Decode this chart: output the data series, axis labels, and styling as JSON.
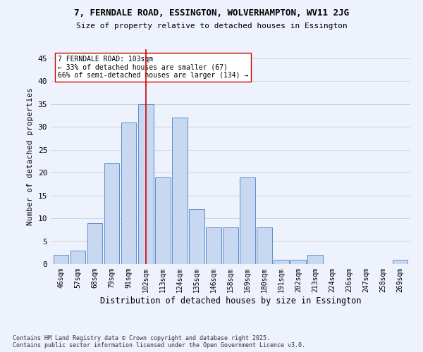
{
  "title1": "7, FERNDALE ROAD, ESSINGTON, WOLVERHAMPTON, WV11 2JG",
  "title2": "Size of property relative to detached houses in Essington",
  "xlabel": "Distribution of detached houses by size in Essington",
  "ylabel": "Number of detached properties",
  "categories": [
    "46sqm",
    "57sqm",
    "68sqm",
    "79sqm",
    "91sqm",
    "102sqm",
    "113sqm",
    "124sqm",
    "135sqm",
    "146sqm",
    "158sqm",
    "169sqm",
    "180sqm",
    "191sqm",
    "202sqm",
    "213sqm",
    "224sqm",
    "236sqm",
    "247sqm",
    "258sqm",
    "269sqm"
  ],
  "values": [
    2,
    3,
    9,
    22,
    31,
    35,
    19,
    32,
    12,
    8,
    8,
    19,
    8,
    1,
    1,
    2,
    0,
    0,
    0,
    0,
    1
  ],
  "bar_color": "#c8d8f0",
  "bar_edge_color": "#5a8fd0",
  "grid_color": "#cccccc",
  "background_color": "#eef2fc",
  "vline_x_index": 5,
  "vline_color": "#cc0000",
  "annotation_text": "7 FERNDALE ROAD: 103sqm\n← 33% of detached houses are smaller (67)\n66% of semi-detached houses are larger (134) →",
  "annotation_box_color": "#ffffff",
  "annotation_box_edge": "#cc0000",
  "footnote": "Contains HM Land Registry data © Crown copyright and database right 2025.\nContains public sector information licensed under the Open Government Licence v3.0.",
  "ylim": [
    0,
    47
  ],
  "yticks": [
    0,
    5,
    10,
    15,
    20,
    25,
    30,
    35,
    40,
    45
  ]
}
